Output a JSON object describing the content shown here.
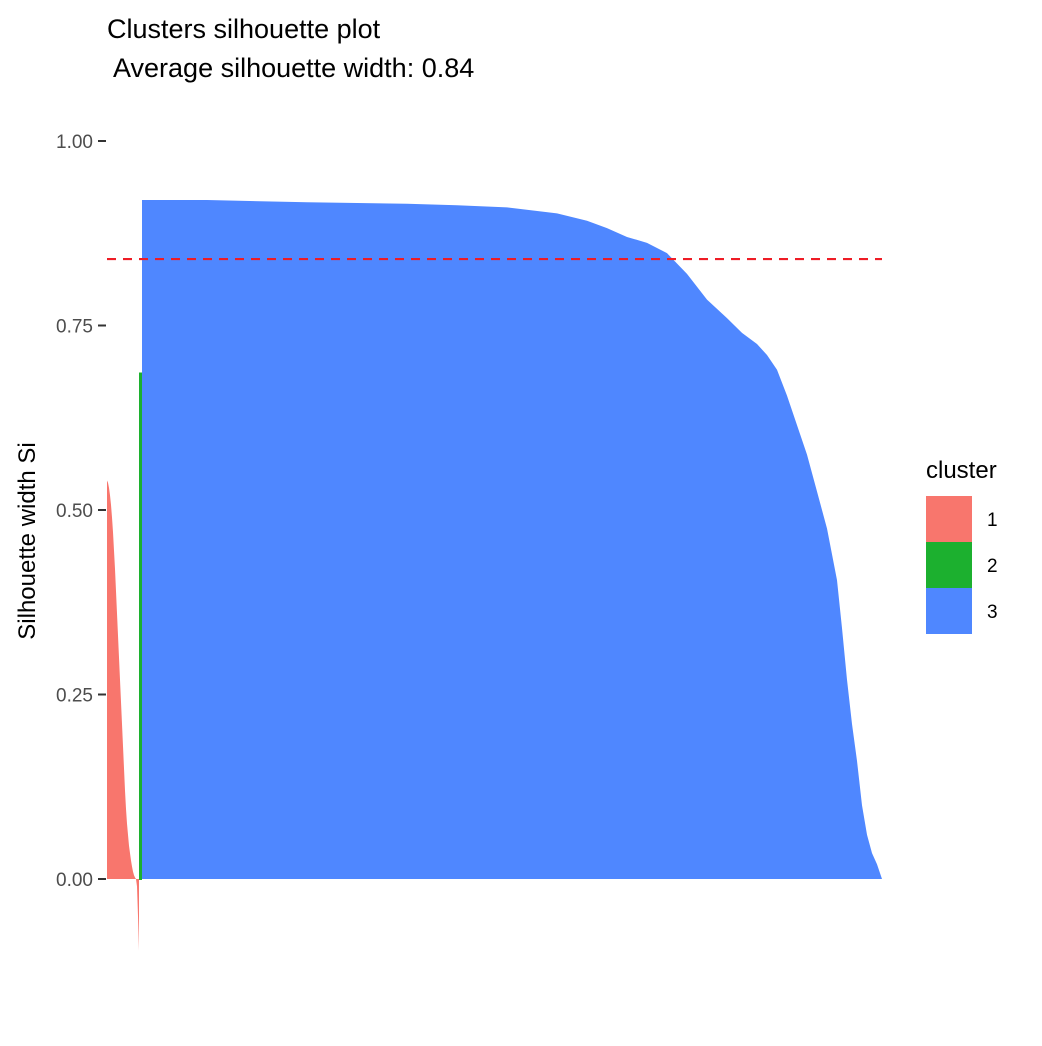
{
  "chart_data": {
    "type": "area",
    "title": "Clusters silhouette plot",
    "subtitle": " Average silhouette width: 0.84",
    "xlabel": "",
    "ylabel": "Silhouette width Si",
    "ylim": [
      -0.1,
      1.0
    ],
    "yticks": [
      "0.00",
      "0.25",
      "0.50",
      "0.75",
      "1.00"
    ],
    "average_silhouette": 0.84,
    "reference_line": {
      "value": 0.84,
      "style": "dashed",
      "color": "#ee1c25"
    },
    "grid": false,
    "legend": {
      "title": "cluster",
      "position": "right"
    },
    "series": [
      {
        "name": "1",
        "color": "#f8766d",
        "x": [
          0,
          1,
          2,
          3,
          4,
          5,
          6,
          7,
          8,
          9,
          10,
          11,
          12,
          13,
          14,
          15,
          16,
          17,
          18,
          19,
          20,
          21,
          22,
          23,
          24,
          25,
          26,
          27,
          28,
          29,
          30,
          31,
          32
        ],
        "values": [
          0.54,
          0.537,
          0.53,
          0.52,
          0.507,
          0.49,
          0.47,
          0.445,
          0.42,
          0.39,
          0.36,
          0.33,
          0.3,
          0.27,
          0.24,
          0.21,
          0.18,
          0.15,
          0.12,
          0.095,
          0.075,
          0.06,
          0.045,
          0.035,
          0.025,
          0.017,
          0.01,
          0.005,
          0.002,
          0.0,
          -0.01,
          -0.05,
          -0.097
        ]
      },
      {
        "name": "2",
        "color": "#1cb02f",
        "x": [
          33,
          34
        ],
        "values": [
          0.685,
          0.685
        ]
      },
      {
        "name": "3",
        "color": "#4f87ff",
        "x": [
          35,
          100,
          200,
          300,
          350,
          400,
          450,
          480,
          500,
          520,
          540,
          560,
          580,
          600,
          620,
          635,
          650,
          660,
          670,
          680,
          690,
          700,
          710,
          720,
          730,
          735,
          740,
          745,
          750,
          755,
          760,
          765,
          770,
          775
        ],
        "values": [
          0.92,
          0.92,
          0.917,
          0.915,
          0.913,
          0.91,
          0.902,
          0.892,
          0.882,
          0.87,
          0.862,
          0.848,
          0.82,
          0.785,
          0.76,
          0.74,
          0.725,
          0.71,
          0.69,
          0.655,
          0.615,
          0.575,
          0.525,
          0.475,
          0.405,
          0.34,
          0.27,
          0.21,
          0.16,
          0.1,
          0.06,
          0.035,
          0.02,
          0.0
        ]
      }
    ]
  }
}
